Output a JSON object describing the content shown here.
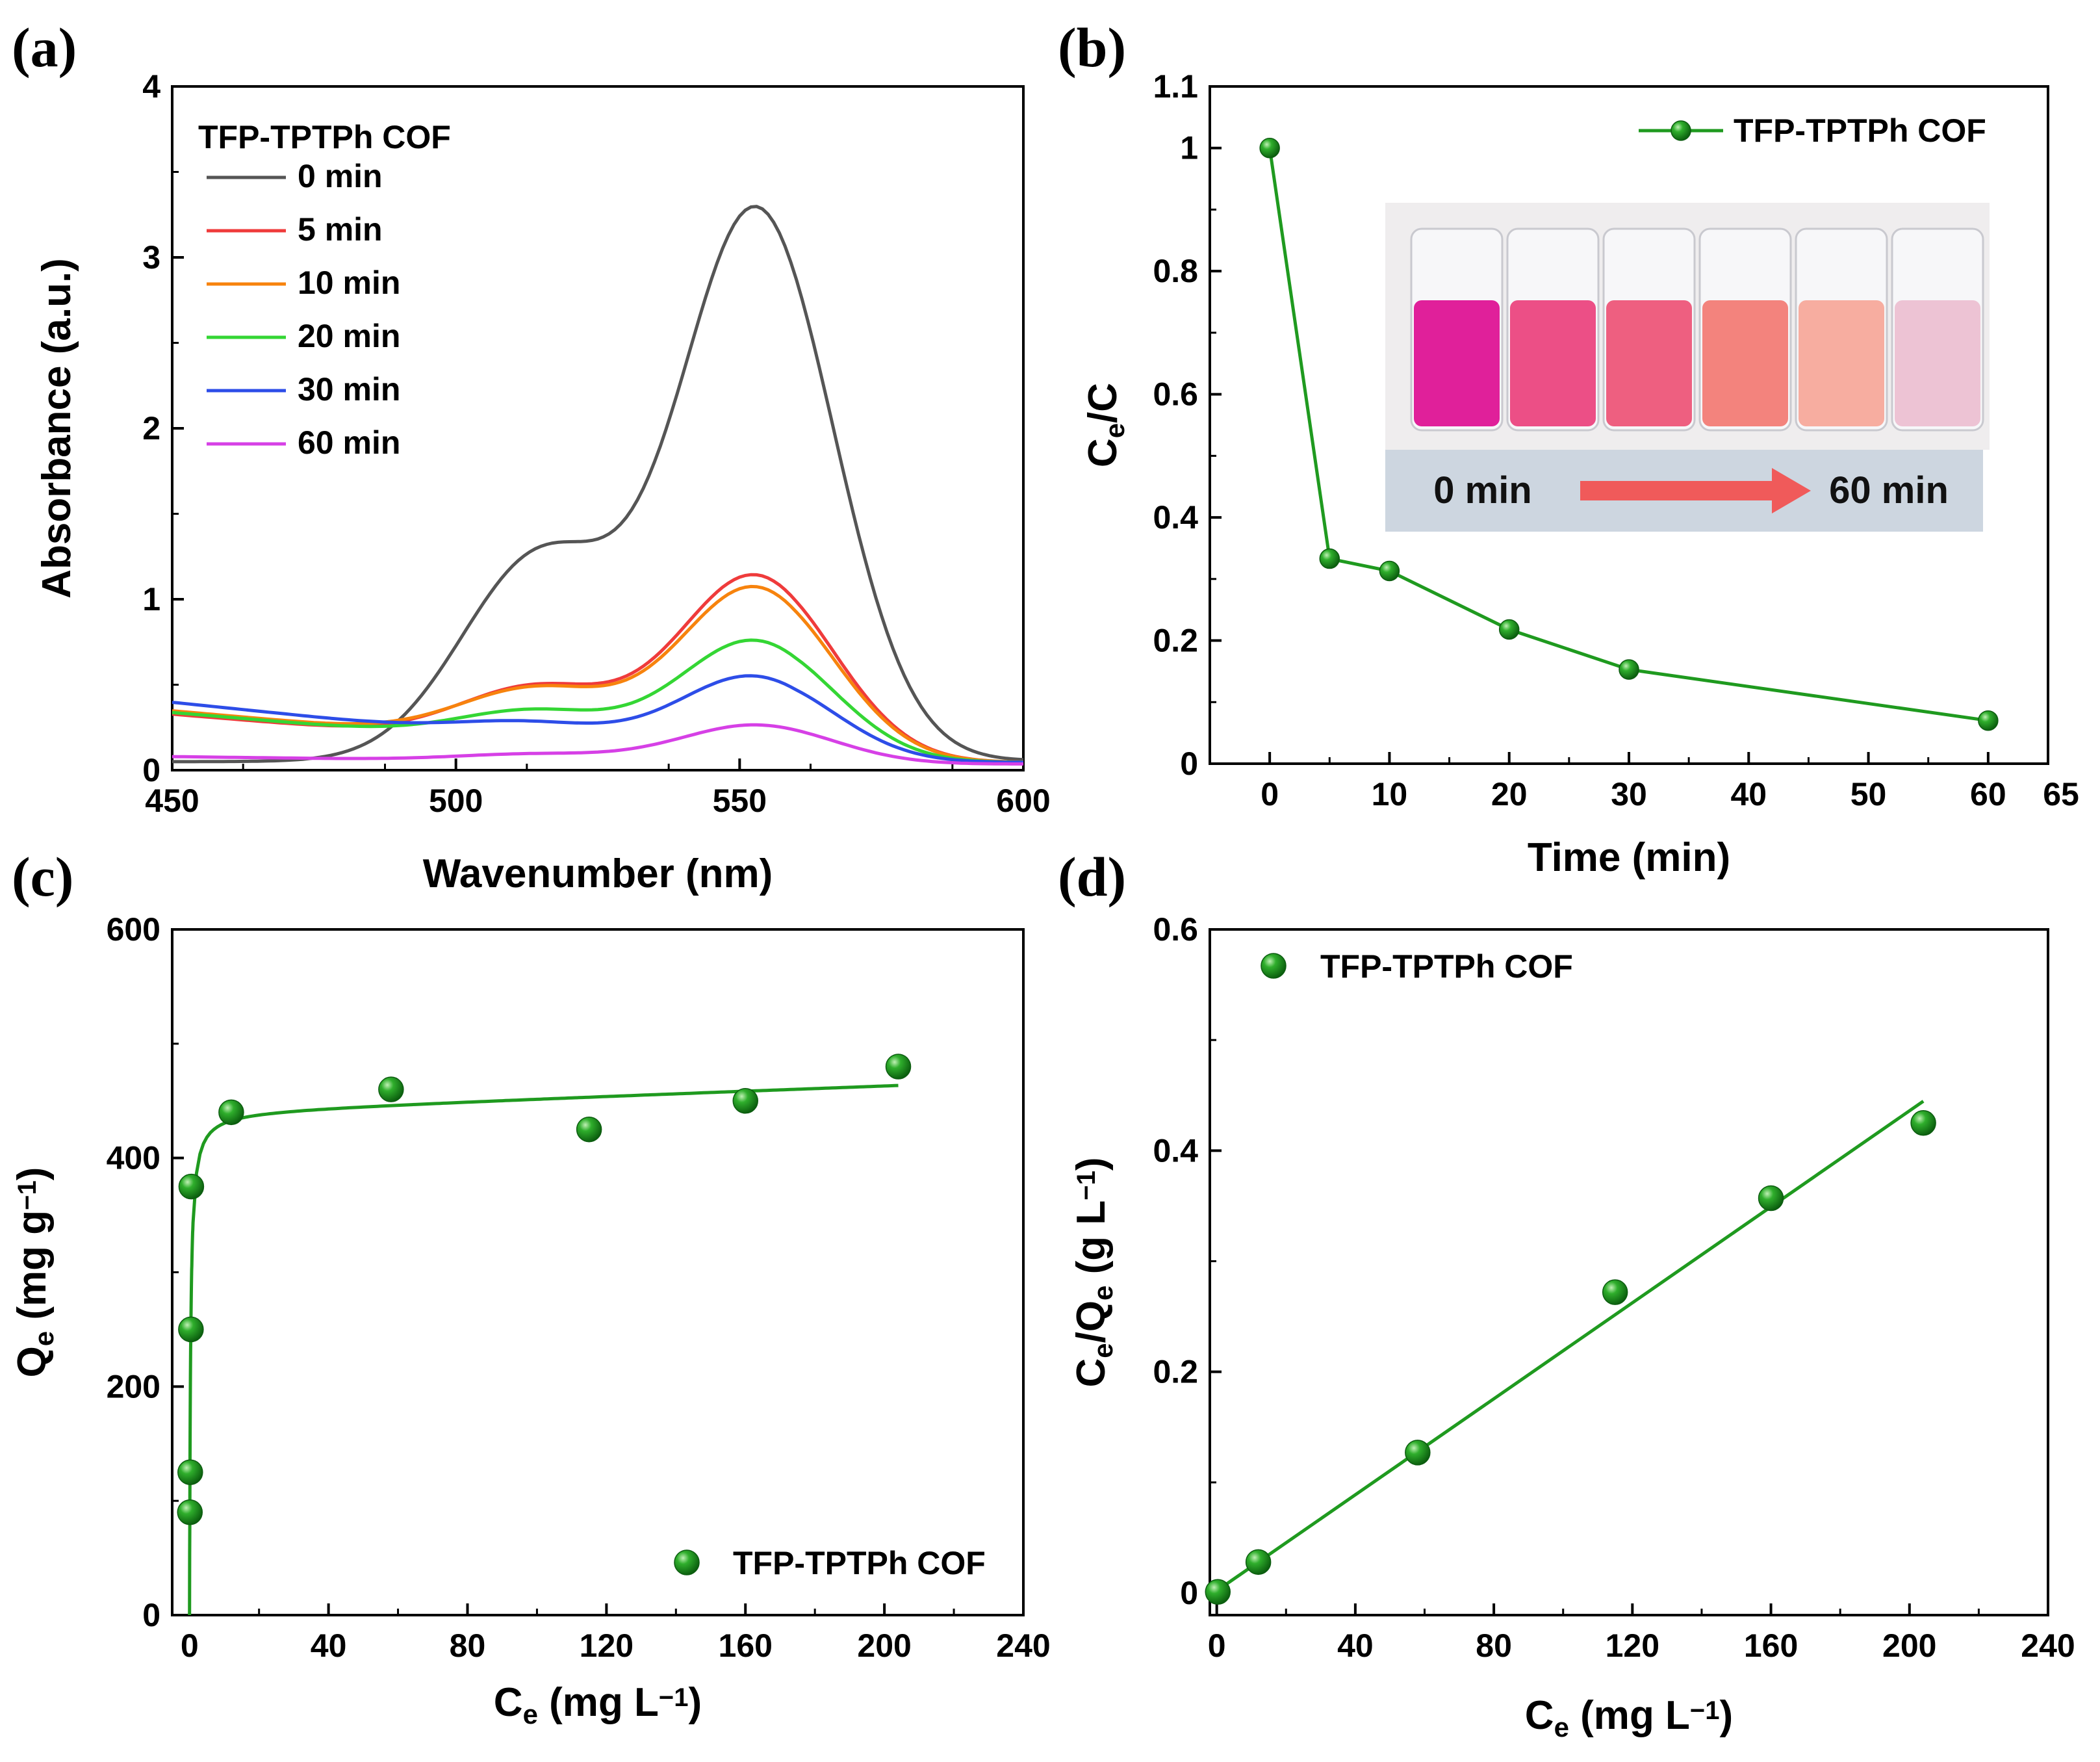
{
  "colors": {
    "green_line": "#1f9a1f",
    "green_marker": "#14861a",
    "arrow": "#f05a5a",
    "inset_bar": "#cdd6e0"
  },
  "chart_data": [
    {
      "panel": "(a)",
      "type": "line",
      "xlabel": "Wavenumber (nm)",
      "ylabel": "Absorbance (a.u.)",
      "xlim": [
        450,
        600
      ],
      "ylim": [
        0,
        4
      ],
      "xticks": [
        "450",
        "500",
        "550",
        "600"
      ],
      "yticks": [
        "0",
        "1",
        "2",
        "3",
        "4"
      ],
      "legend_title": "TFP-TPTPh COF",
      "series": [
        {
          "name": "0 min",
          "color": "#555555",
          "peak": 3.22,
          "base_left": 0.05,
          "shoulder": 1.2,
          "tail": 0.06
        },
        {
          "name": "5 min",
          "color": "#ef3b3b",
          "peak": 1.08,
          "base_left": 0.33,
          "shoulder": 0.38,
          "tail": 0.05
        },
        {
          "name": "10 min",
          "color": "#f7830d",
          "peak": 1.01,
          "base_left": 0.35,
          "shoulder": 0.36,
          "tail": 0.05
        },
        {
          "name": "20 min",
          "color": "#34d634",
          "peak": 0.7,
          "base_left": 0.34,
          "shoulder": 0.22,
          "tail": 0.05
        },
        {
          "name": "30 min",
          "color": "#2d4de8",
          "peak": 0.49,
          "base_left": 0.4,
          "shoulder": 0.12,
          "tail": 0.05
        },
        {
          "name": "60 min",
          "color": "#d640e6",
          "peak": 0.23,
          "base_left": 0.08,
          "shoulder": 0.05,
          "tail": 0.04
        }
      ]
    },
    {
      "panel": "(b)",
      "type": "line",
      "xlabel": "Time (min)",
      "ylabel": "C",
      "ylabel_sub": "e",
      "ylabel_rest": "/C",
      "xlim": [
        -5,
        65
      ],
      "ylim": [
        0,
        1.1
      ],
      "xticks": [
        "0",
        "10",
        "20",
        "30",
        "40",
        "50",
        "60",
        "65"
      ],
      "yticks": [
        "0",
        "0.2",
        "0.4",
        "0.6",
        "0.8",
        "1",
        "1.1"
      ],
      "series": [
        {
          "name": "TFP-TPTPh COF",
          "x": [
            0,
            5,
            10,
            20,
            30,
            60
          ],
          "y": [
            1.0,
            0.333,
            0.313,
            0.218,
            0.153,
            0.07
          ]
        }
      ],
      "inset": {
        "start_label": "0 min",
        "end_label": "60 min",
        "vial_colors": [
          "#e0209a",
          "#ec4f86",
          "#ee5f80",
          "#f3837d",
          "#f7ada0",
          "#edc3d4"
        ]
      }
    },
    {
      "panel": "(c)",
      "type": "scatter",
      "xlabel": "C",
      "xlabel_sub": "e",
      "xlabel_rest": " (mg L",
      "xlabel_sup": "−1",
      "xlabel_end": ")",
      "ylabel": "Q",
      "ylabel_sub": "e",
      "ylabel_rest": " (mg g",
      "ylabel_sup": "−1",
      "ylabel_end": ")",
      "xlim": [
        -5,
        240
      ],
      "ylim": [
        0,
        600
      ],
      "xticks": [
        "0",
        "40",
        "80",
        "120",
        "160",
        "200",
        "240"
      ],
      "yticks": [
        "0",
        "200",
        "400",
        "600"
      ],
      "series": [
        {
          "name": "TFP-TPTPh COF",
          "x": [
            0.1,
            0.2,
            0.4,
            0.5,
            12,
            58,
            115,
            160,
            204
          ],
          "y": [
            90,
            125,
            250,
            375,
            440,
            460,
            425,
            450,
            480
          ]
        }
      ],
      "fit": {
        "model": "Langmuir",
        "qmax": 460,
        "KL": 3.5
      }
    },
    {
      "panel": "(d)",
      "type": "scatter",
      "xlabel": "C",
      "xlabel_sub": "e",
      "xlabel_rest": " (mg L",
      "xlabel_sup": "−1",
      "xlabel_end": ")",
      "ylabel": "C",
      "ylabel_sub": "e",
      "ylabel_mid": "/Q",
      "ylabel_sub2": "e",
      "ylabel_rest": " (g L",
      "ylabel_sup": "−1",
      "ylabel_end": ")",
      "xlim": [
        -2,
        240
      ],
      "ylim": [
        -0.02,
        0.6
      ],
      "xticks": [
        "0",
        "40",
        "80",
        "120",
        "160",
        "200",
        "240"
      ],
      "yticks": [
        "0",
        "0.2",
        "0.4",
        "0.6"
      ],
      "series": [
        {
          "name": "TFP-TPTPh COF",
          "x": [
            0.3,
            12,
            58,
            115,
            160,
            204
          ],
          "y": [
            0.001,
            0.028,
            0.127,
            0.272,
            0.357,
            0.425
          ]
        }
      ],
      "fit": {
        "slope": 0.00217,
        "intercept": 0.002,
        "x_range": [
          0,
          204
        ]
      }
    }
  ]
}
